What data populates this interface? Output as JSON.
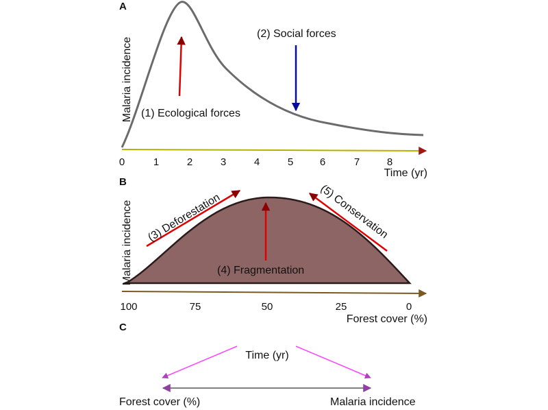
{
  "panels": {
    "a": {
      "letter": "A",
      "ylabel": "Malaria incidence",
      "xlabel": "Time (yr)",
      "ticks": [
        "0",
        "1",
        "2",
        "3",
        "4",
        "5",
        "6",
        "7",
        "8"
      ],
      "annotations": {
        "ecological": "(1) Ecological forces",
        "social": "(2) Social forces"
      }
    },
    "b": {
      "letter": "B",
      "ylabel": "Malaria incidence",
      "xlabel": "Forest cover (%)",
      "ticks": [
        "100",
        "75",
        "50",
        "25",
        "0"
      ],
      "annotations": {
        "deforestation": "(3) Deforestation",
        "fragmentation": "(4) Fragmentation",
        "conservation": "(5) Conservation"
      }
    },
    "c": {
      "letter": "C",
      "top": "Time (yr)",
      "left": "Forest cover (%)",
      "right": "Malaria incidence"
    }
  },
  "colors": {
    "curve": "#6b6b6b",
    "axis_a": "#b5b000",
    "area_b": "#8e6565",
    "outline_b": "#2b1b1b",
    "red_arrow": "#e00000",
    "blue_arrow": "#0a0a9a",
    "magenta": "#ff40ff",
    "gray_link": "#808080"
  }
}
